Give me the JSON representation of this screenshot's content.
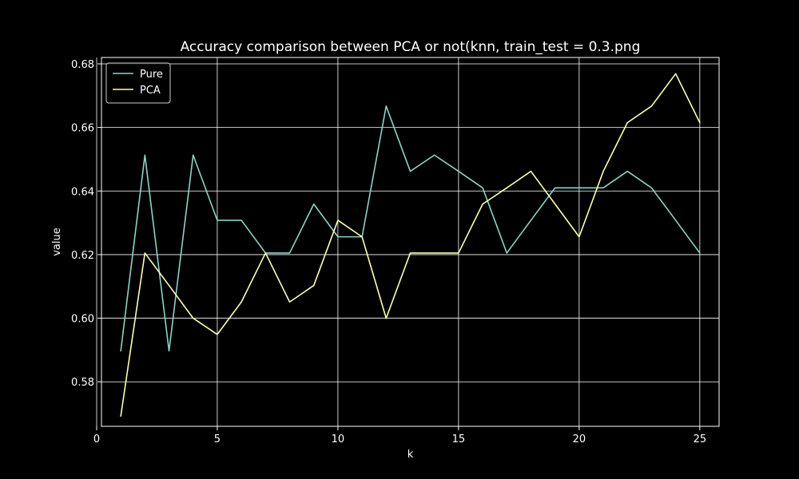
{
  "chart_data": {
    "type": "line",
    "title": "Accuracy comparison between PCA or not(knn, train_test = 0.3.png",
    "xlabel": "k",
    "ylabel": "value",
    "xlim": [
      0.2,
      25.8
    ],
    "ylim": [
      0.566,
      0.682
    ],
    "xticks": [
      0,
      5,
      10,
      15,
      20,
      25
    ],
    "xtick_labels": [
      "0",
      "5",
      "10",
      "15",
      "20",
      "25"
    ],
    "yticks": [
      0.58,
      0.6,
      0.62,
      0.64,
      0.66,
      0.68
    ],
    "ytick_labels": [
      "0.58",
      "0.60",
      "0.62",
      "0.64",
      "0.66",
      "0.68"
    ],
    "grid": true,
    "legend_position": "top-left",
    "x": [
      1,
      2,
      3,
      4,
      5,
      6,
      7,
      8,
      9,
      10,
      11,
      12,
      13,
      14,
      15,
      16,
      17,
      18,
      19,
      20,
      21,
      22,
      23,
      24,
      25
    ],
    "series": [
      {
        "name": "Pure",
        "color": "#8dd3c7",
        "values": [
          0.5897,
          0.6513,
          0.5897,
          0.6513,
          0.6308,
          0.6308,
          0.6205,
          0.6205,
          0.6359,
          0.6256,
          0.6256,
          0.6667,
          0.6462,
          0.6513,
          0.6462,
          0.641,
          0.6205,
          0.6308,
          0.641,
          0.641,
          0.641,
          0.6462,
          0.641,
          0.6308,
          0.6205
        ]
      },
      {
        "name": "PCA",
        "color": "#feffb3",
        "values": [
          0.5692,
          0.6205,
          0.6103,
          0.6,
          0.5949,
          0.6051,
          0.6205,
          0.6051,
          0.6103,
          0.6308,
          0.6256,
          0.6,
          0.6205,
          0.6205,
          0.6205,
          0.6359,
          0.641,
          0.6462,
          0.6359,
          0.6256,
          0.6462,
          0.6615,
          0.6667,
          0.6769,
          0.6615
        ]
      }
    ]
  }
}
